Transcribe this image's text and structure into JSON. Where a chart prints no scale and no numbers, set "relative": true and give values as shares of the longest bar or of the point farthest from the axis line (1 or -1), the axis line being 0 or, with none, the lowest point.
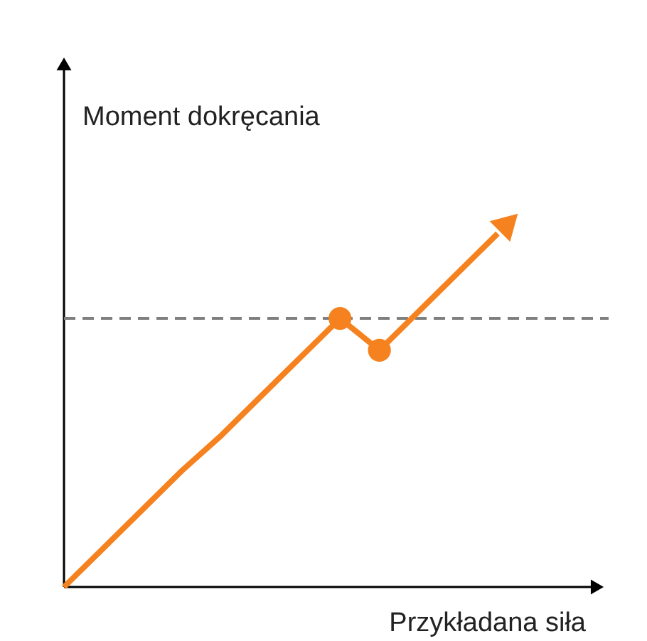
{
  "chart_data": {
    "type": "line",
    "relative": true,
    "xlabel": "Przykładana siła",
    "ylabel": "Moment dokręcania",
    "categories": [
      null,
      null,
      null,
      null,
      null,
      null,
      null,
      null,
      null,
      null,
      null,
      null
    ],
    "grid": false,
    "series": [
      {
        "color": "#f5821f",
        "values": [
          0,
          0.11,
          0.22,
          0.33,
          0.43,
          0.54,
          0.65,
          0.76,
          0.67,
          0.78,
          0.89,
          1.0
        ]
      }
    ],
    "ref_lines": [
      {
        "axis": "y",
        "value": 0.76,
        "color": "#7f7f7f",
        "line_style": "dashed"
      }
    ]
  }
}
